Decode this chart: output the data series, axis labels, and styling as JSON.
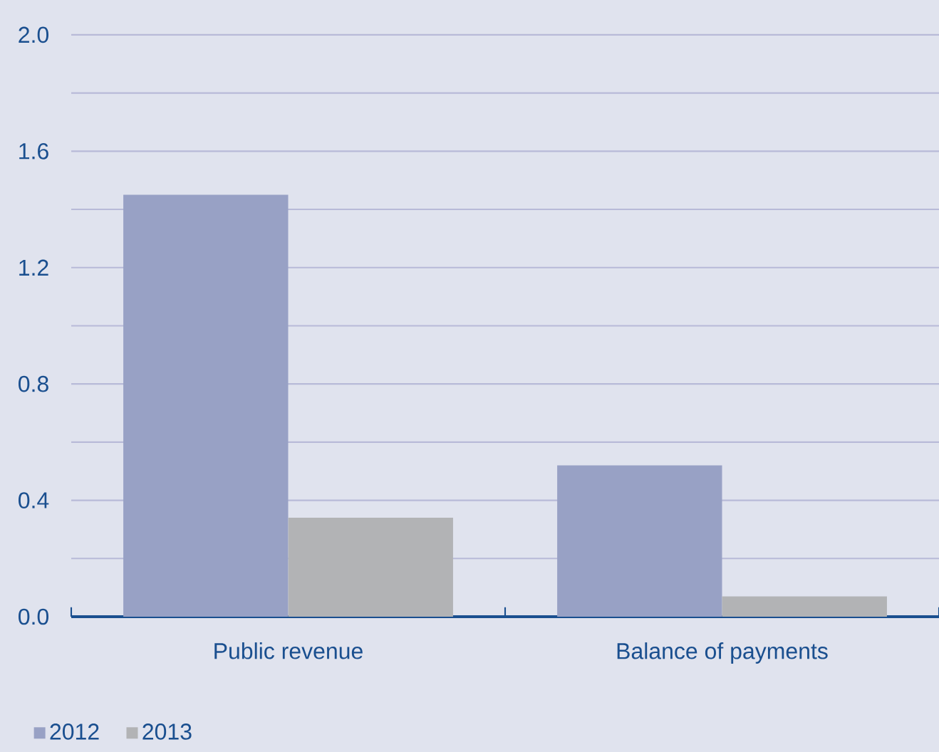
{
  "chart_data": {
    "type": "bar",
    "categories": [
      "Public revenue",
      "Balance of payments"
    ],
    "series": [
      {
        "name": "2012",
        "color": "#98a1c5",
        "values": [
          1.45,
          0.52
        ]
      },
      {
        "name": "2013",
        "color": "#b2b3b5",
        "values": [
          0.34,
          0.07
        ]
      }
    ],
    "ylim": [
      0,
      2.0
    ],
    "yticks": [
      {
        "value": 0,
        "label": "0.0"
      },
      {
        "value": 0.2,
        "label": null
      },
      0.4,
      {
        "value": 0.6,
        "label": null
      },
      0.8,
      {
        "value": 1.0,
        "label": null
      },
      1.2,
      {
        "value": 1.4,
        "label": null
      },
      1.6,
      {
        "value": 1.8,
        "label": null
      },
      {
        "value": 2.0,
        "label": "2.0"
      }
    ],
    "grid": "y",
    "legend": "bottom left"
  }
}
